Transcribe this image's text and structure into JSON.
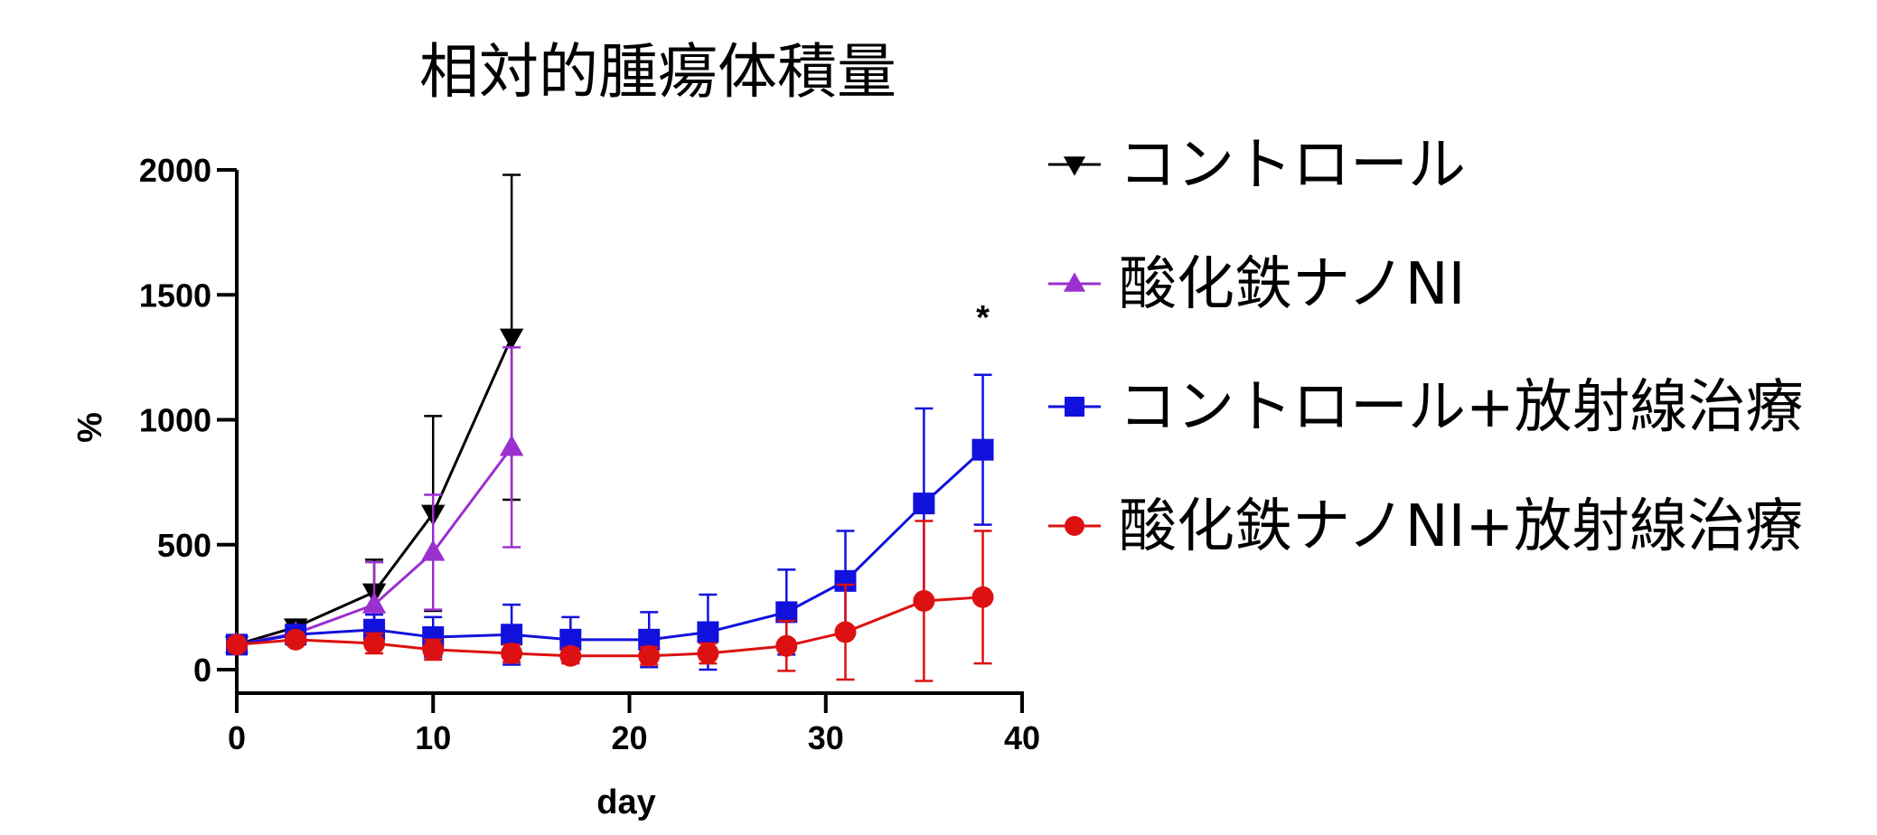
{
  "chart_data": {
    "type": "line",
    "title": "相対的腫瘍体積量",
    "xlabel": "day",
    "ylabel": "%",
    "xlim": [
      0,
      40
    ],
    "ylim": [
      0,
      2000
    ],
    "xticks": [
      0,
      10,
      20,
      30,
      40
    ],
    "yticks": [
      0,
      500,
      1000,
      1500,
      2000
    ],
    "grid": false,
    "legend_position": "right",
    "series": [
      {
        "name": "コントロール",
        "color": "#000000",
        "marker": "triangle-down",
        "x": [
          0,
          3,
          7,
          10,
          14
        ],
        "y": [
          100,
          170,
          310,
          625,
          1330
        ],
        "error": [
          20,
          25,
          130,
          390,
          650
        ]
      },
      {
        "name": "酸化鉄ナノNI",
        "color": "#9b30d0",
        "marker": "triangle-up",
        "x": [
          0,
          3,
          7,
          10,
          14
        ],
        "y": [
          100,
          145,
          260,
          470,
          890
        ],
        "error": [
          20,
          20,
          170,
          230,
          400
        ]
      },
      {
        "name": "コントロール+放射線治療",
        "color": "#1111dd",
        "marker": "square",
        "x": [
          0,
          3,
          7,
          10,
          14,
          17,
          21,
          24,
          28,
          31,
          35,
          38
        ],
        "y": [
          100,
          140,
          160,
          130,
          140,
          120,
          120,
          150,
          230,
          355,
          665,
          880
        ],
        "error": [
          20,
          30,
          60,
          80,
          120,
          90,
          110,
          150,
          170,
          200,
          380,
          300
        ]
      },
      {
        "name": "酸化鉄ナノNI+放射線治療",
        "color": "#dd1111",
        "marker": "circle",
        "x": [
          0,
          3,
          7,
          10,
          14,
          17,
          21,
          24,
          28,
          31,
          35,
          38
        ],
        "y": [
          100,
          120,
          105,
          80,
          65,
          55,
          55,
          65,
          95,
          150,
          275,
          290
        ],
        "error": [
          15,
          20,
          40,
          40,
          35,
          30,
          35,
          40,
          100,
          190,
          320,
          265
        ]
      }
    ],
    "annotations": [
      {
        "text": "*",
        "x": 38,
        "y": 1400
      }
    ]
  }
}
